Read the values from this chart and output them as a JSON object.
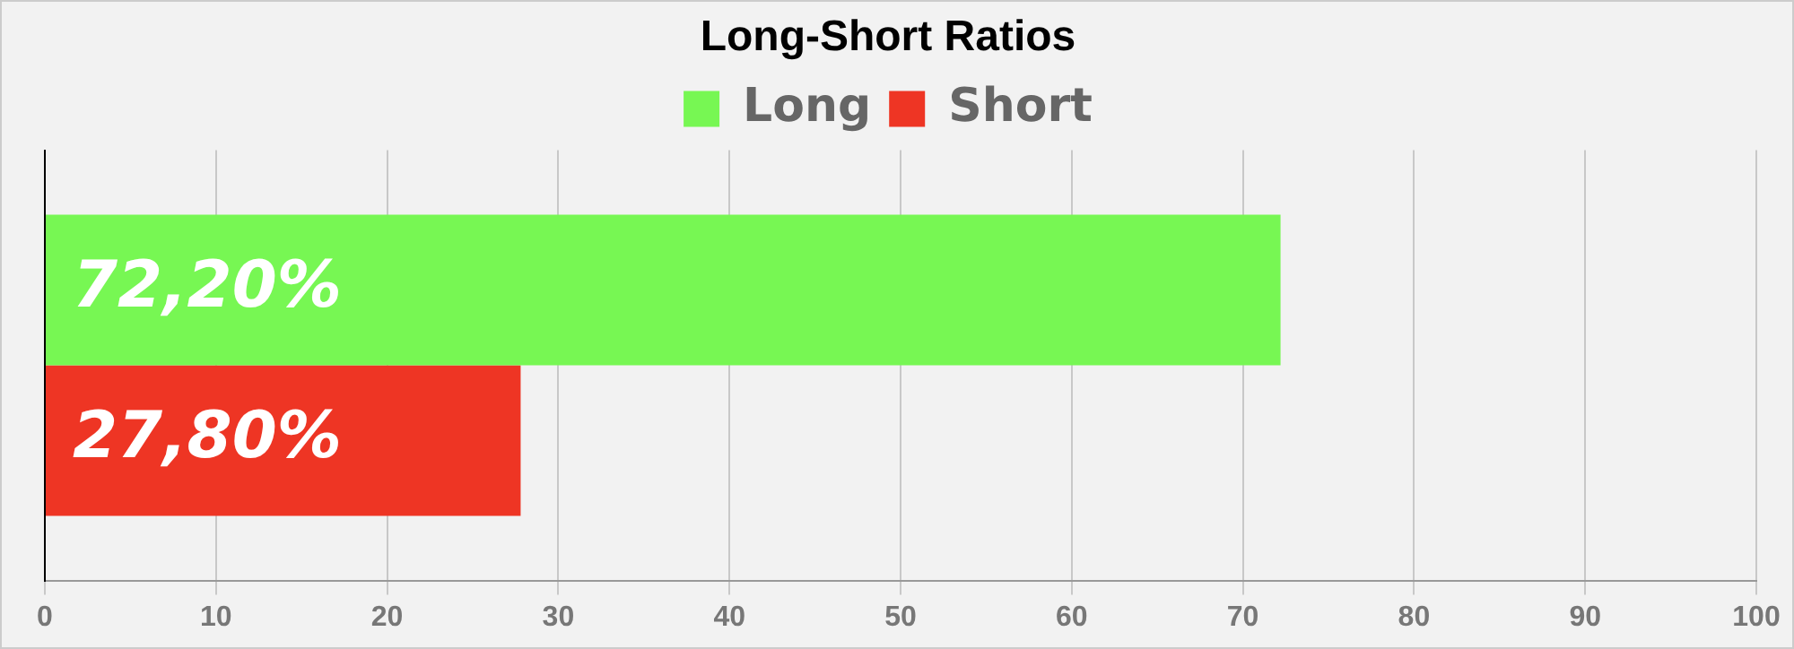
{
  "chart_data": {
    "type": "bar",
    "orientation": "horizontal",
    "title": "Long-Short Ratios",
    "categories": [
      null
    ],
    "series": [
      {
        "name": "Long",
        "color": "#77f753",
        "values": [
          72.2
        ],
        "value_labels": [
          "72,20%"
        ]
      },
      {
        "name": "Short",
        "color": "#ee3524",
        "values": [
          27.8
        ],
        "value_labels": [
          "27,80%"
        ]
      }
    ],
    "xlim": [
      0,
      100
    ],
    "xticks": [
      0,
      10,
      20,
      30,
      40,
      50,
      60,
      70,
      80,
      90,
      100
    ],
    "grid": "x",
    "legend": "top"
  }
}
